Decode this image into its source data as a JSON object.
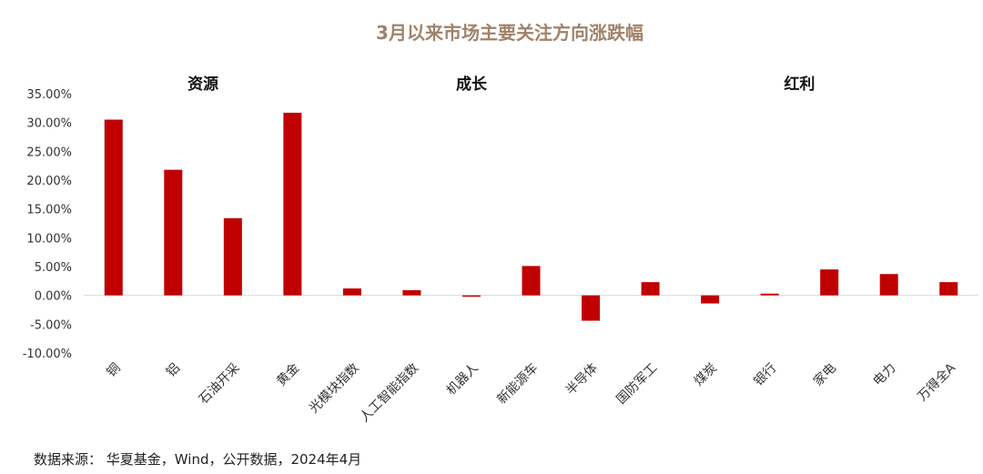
{
  "colors": {
    "bar": "#c00000",
    "title": "#a0826a",
    "text": "#333333"
  },
  "chart_data": {
    "type": "bar",
    "title": "3月以来市场主要关注方向涨跌幅",
    "xlabel": "",
    "ylabel": "",
    "ylim": [
      -0.1,
      0.35
    ],
    "yticks": [
      0.35,
      0.3,
      0.25,
      0.2,
      0.15,
      0.1,
      0.05,
      0.0,
      -0.05,
      -0.1
    ],
    "ytick_labels": [
      "35.00%",
      "30.00%",
      "25.00%",
      "20.00%",
      "15.00%",
      "10.00%",
      "5.00%",
      "0.00%",
      "-5.00%",
      "-10.00%"
    ],
    "grid": false,
    "legend": "none",
    "categories": [
      "铜",
      "铝",
      "石油开采",
      "黄金",
      "光模块指数",
      "人工智能指数",
      "机器人",
      "新能源车",
      "半导体",
      "国防军工",
      "煤炭",
      "银行",
      "家电",
      "电力",
      "万得全A"
    ],
    "values": [
      0.305,
      0.218,
      0.134,
      0.317,
      0.012,
      0.009,
      -0.002,
      0.051,
      -0.044,
      0.023,
      -0.014,
      0.003,
      0.045,
      0.037,
      0.023
    ],
    "groups": [
      {
        "label": "资源",
        "categories": [
          "铜",
          "铝",
          "石油开采",
          "黄金"
        ]
      },
      {
        "label": "成长",
        "categories": [
          "光模块指数",
          "人工智能指数",
          "机器人",
          "新能源车",
          "半导体"
        ]
      },
      {
        "label": "红利",
        "categories": [
          "国防军工",
          "煤炭",
          "银行",
          "家电",
          "电力",
          "万得全A"
        ]
      }
    ]
  },
  "source": "数据来源： 华夏基金，Wind，公开数据，2024年4月"
}
